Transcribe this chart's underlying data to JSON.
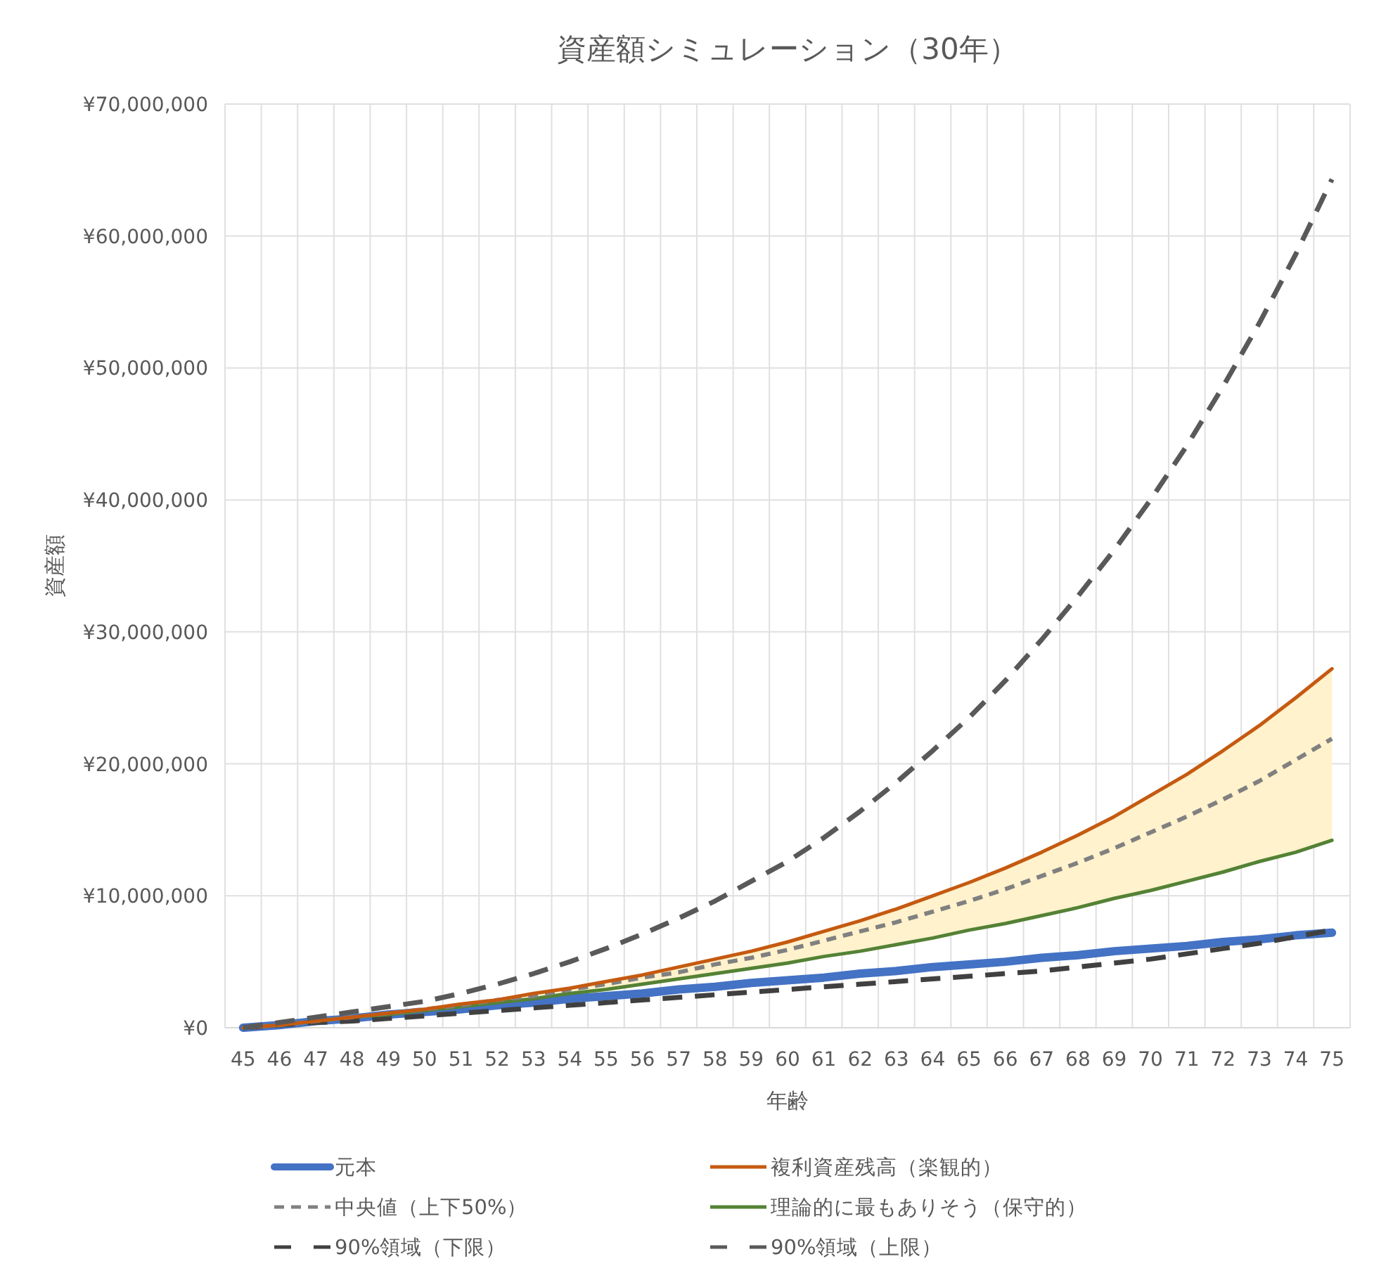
{
  "chart_data": {
    "type": "line",
    "title": "資産額シミュレーション（30年）",
    "xlabel": "年齢",
    "ylabel": "資産額",
    "categories": [
      "45",
      "46",
      "47",
      "48",
      "49",
      "50",
      "51",
      "52",
      "53",
      "54",
      "55",
      "56",
      "57",
      "58",
      "59",
      "60",
      "61",
      "62",
      "63",
      "64",
      "65",
      "66",
      "67",
      "68",
      "69",
      "70",
      "71",
      "72",
      "73",
      "74",
      "75"
    ],
    "ylim": [
      0,
      70000000
    ],
    "yticks": [
      {
        "value": 0,
        "label": "¥0"
      },
      {
        "value": 10000000,
        "label": "¥10,000,000"
      },
      {
        "value": 20000000,
        "label": "¥20,000,000"
      },
      {
        "value": 30000000,
        "label": "¥30,000,000"
      },
      {
        "value": 40000000,
        "label": "¥40,000,000"
      },
      {
        "value": 50000000,
        "label": "¥50,000,000"
      },
      {
        "value": 60000000,
        "label": "¥60,000,000"
      },
      {
        "value": 70000000,
        "label": "¥70,000,000"
      }
    ],
    "grid": true,
    "legend": "bottom",
    "marker": "none",
    "series": [
      {
        "name": "元本",
        "color": "#4472c4",
        "line_style": "solid",
        "values": [
          0,
          200000,
          500000,
          700000,
          1000000,
          1200000,
          1400000,
          1700000,
          1900000,
          2200000,
          2400000,
          2600000,
          2900000,
          3100000,
          3400000,
          3600000,
          3800000,
          4100000,
          4300000,
          4600000,
          4800000,
          5000000,
          5300000,
          5500000,
          5800000,
          6000000,
          6200000,
          6500000,
          6700000,
          7000000,
          7200000
        ]
      },
      {
        "name": "複利資産残高（楽観的）",
        "color": "#c55a11",
        "line_style": "solid",
        "values": [
          0,
          200000,
          500000,
          800000,
          1100000,
          1400000,
          1800000,
          2100000,
          2600000,
          3000000,
          3500000,
          4000000,
          4600000,
          5200000,
          5800000,
          6500000,
          7300000,
          8100000,
          9000000,
          10000000,
          11000000,
          12100000,
          13300000,
          14600000,
          16000000,
          17600000,
          19200000,
          21000000,
          22900000,
          25000000,
          27200000
        ]
      },
      {
        "name": "中央値（上下50%）",
        "color": "#808080",
        "line_style": "dashed",
        "values": [
          0,
          200000,
          500000,
          800000,
          1100000,
          1400000,
          1700000,
          2100000,
          2400000,
          2900000,
          3300000,
          3800000,
          4200000,
          4800000,
          5300000,
          5900000,
          6600000,
          7300000,
          8000000,
          8800000,
          9600000,
          10500000,
          11500000,
          12500000,
          13600000,
          14800000,
          16000000,
          17300000,
          18700000,
          20300000,
          21900000
        ],
        "lower": [
          0,
          200000,
          500000,
          800000,
          1000000,
          1300000,
          1600000,
          1900000,
          2200000,
          2600000,
          2900000,
          3300000,
          3700000,
          4100000,
          4500000,
          4900000,
          5400000,
          5800000,
          6300000,
          6800000,
          7400000,
          7900000,
          8500000,
          9100000,
          9800000,
          10400000,
          11100000,
          11800000,
          12600000,
          13300000,
          14200000
        ],
        "upper": [
          0,
          200000,
          500000,
          800000,
          1100000,
          1400000,
          1800000,
          2100000,
          2600000,
          3000000,
          3500000,
          4000000,
          4600000,
          5200000,
          5800000,
          6500000,
          7300000,
          8100000,
          9000000,
          10000000,
          11000000,
          12100000,
          13300000,
          14600000,
          16000000,
          17600000,
          19200000,
          21000000,
          22900000,
          25000000,
          27200000
        ]
      },
      {
        "name": "理論的に最もありそう（保守的）",
        "color": "#548235",
        "line_style": "solid",
        "values": [
          0,
          200000,
          500000,
          800000,
          1000000,
          1300000,
          1600000,
          1900000,
          2200000,
          2600000,
          2900000,
          3300000,
          3700000,
          4100000,
          4500000,
          4900000,
          5400000,
          5800000,
          6300000,
          6800000,
          7400000,
          7900000,
          8500000,
          9100000,
          9800000,
          10400000,
          11100000,
          11800000,
          12600000,
          13300000,
          14200000
        ]
      },
      {
        "name": "90%領域（下限）",
        "color": "#404040",
        "line_style": "dashed",
        "values": [
          0,
          200000,
          400000,
          500000,
          700000,
          900000,
          1100000,
          1300000,
          1500000,
          1700000,
          1900000,
          2100000,
          2300000,
          2500000,
          2700000,
          2900000,
          3100000,
          3300000,
          3500000,
          3700000,
          3900000,
          4100000,
          4300000,
          4600000,
          4900000,
          5200000,
          5600000,
          6000000,
          6400000,
          6900000,
          7400000
        ]
      },
      {
        "name": "90%領域（上限）",
        "color": "#595959",
        "line_style": "dashed",
        "values": [
          0,
          400000,
          800000,
          1200000,
          1600000,
          2000000,
          2600000,
          3300000,
          4100000,
          5000000,
          6000000,
          7100000,
          8300000,
          9600000,
          11100000,
          12600000,
          14400000,
          16400000,
          18600000,
          21000000,
          23500000,
          26300000,
          29400000,
          32700000,
          36200000,
          40000000,
          44100000,
          48600000,
          53400000,
          58600000,
          64300000
        ]
      }
    ]
  }
}
